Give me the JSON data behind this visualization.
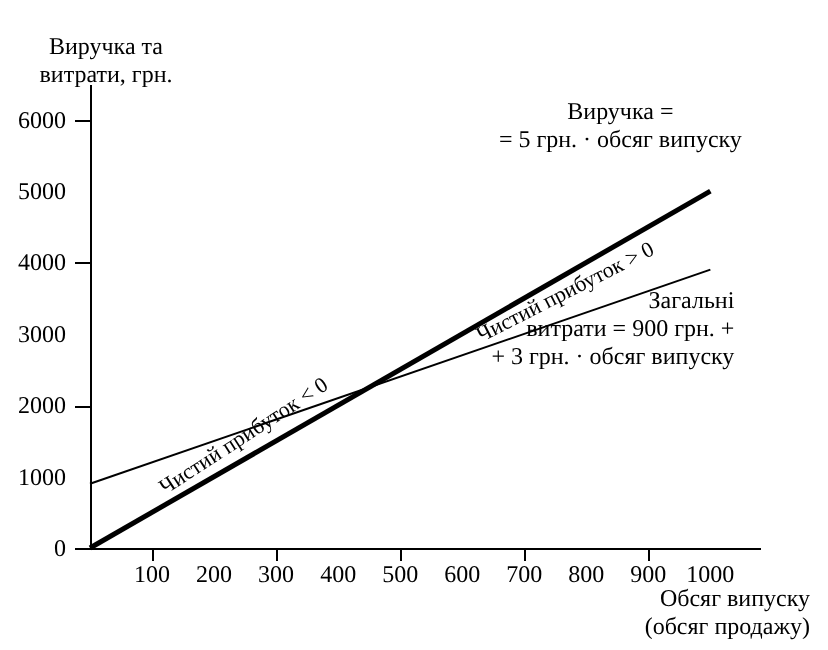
{
  "chart_data": {
    "type": "line",
    "xlabel": "Обсяг випуску\n(обсяг продажу)",
    "ylabel": "Виручка та\nвитрати, грн.",
    "x": [
      0,
      1000
    ],
    "series": [
      {
        "name": "Виручка =\n= 5 грн. · обсяг випуску",
        "color": "#000000",
        "values": [
          0,
          5000
        ]
      },
      {
        "name": "Загальні\nвитрати = 900 грн. +\n+ 3 грн. · обсяг випуску",
        "color": "#000000",
        "values": [
          900,
          3900
        ]
      }
    ],
    "annotations": [
      "Чистий прибуток < 0",
      "Чистий прибуток > 0"
    ],
    "xlim": [
      0,
      1080
    ],
    "ylim": [
      0,
      6500
    ],
    "xticks": [
      100,
      200,
      300,
      400,
      500,
      600,
      700,
      800,
      900,
      1000
    ],
    "yticks": [
      0,
      1000,
      2000,
      3000,
      4000,
      5000,
      6000
    ],
    "grid": false,
    "marker": "none",
    "line_style": "solid"
  }
}
